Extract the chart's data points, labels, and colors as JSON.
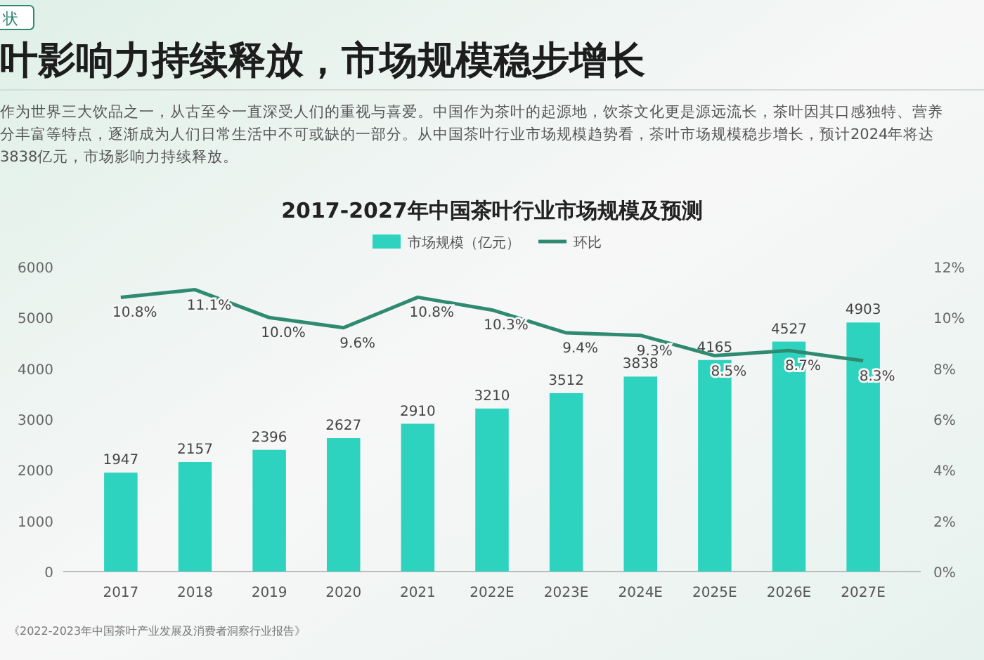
{
  "chart_data": {
    "type": "bar",
    "title": "2017-2027年中国茶叶行业市场规模及预测",
    "categories": [
      "2017",
      "2018",
      "2019",
      "2020",
      "2021",
      "2022E",
      "2023E",
      "2024E",
      "2025E",
      "2026E",
      "2027E"
    ],
    "series": [
      {
        "name": "市场规模（亿元）",
        "color": "#2ed3bf",
        "values": [
          1947,
          2157,
          2396,
          2627,
          2910,
          3210,
          3512,
          3838,
          4165,
          4527,
          4903
        ]
      },
      {
        "name": "环比",
        "type": "line",
        "axis": "y2",
        "color": "#2f8a72",
        "values": [
          10.8,
          11.1,
          10.0,
          9.6,
          10.8,
          10.3,
          9.4,
          9.3,
          8.5,
          8.7,
          8.3
        ],
        "value_labels": [
          "10.8%",
          "11.1%",
          "10.0%",
          "9.6%",
          "10.8%",
          "10.3%",
          "9.4%",
          "9.3%",
          "8.5%",
          "8.7%",
          "8.3%"
        ]
      }
    ],
    "ylim": [
      0,
      6000
    ],
    "yticks": [
      0,
      1000,
      2000,
      3000,
      4000,
      5000,
      6000
    ],
    "y2lim": [
      0,
      12
    ],
    "y2ticks": [
      {
        "value": 0,
        "label": "0%"
      },
      {
        "value": 2,
        "label": "2%"
      },
      {
        "value": 4,
        "label": "4%"
      },
      {
        "value": 6,
        "label": "6%"
      },
      {
        "value": 8,
        "label": "8%"
      },
      {
        "value": 10,
        "label": "10%"
      },
      {
        "value": 12,
        "label": "12%"
      }
    ],
    "data_labels": true,
    "legend": "top",
    "grid": false,
    "marker": "none",
    "line_style": "solid",
    "annotations": [
      "状",
      "叶影响力持续释放，市场规模稳步增长",
      "作为世界三大饮品之一，从古至今一直深受人们的重视与喜爱。中国作为茶叶的起源地，饮茶文化更是源远流长，茶叶因其口感独特、营养",
      "分丰富等特点，逐渐成为人们日常生活中不可或缺的一部分。从中国茶叶行业市场规模趋势看，茶叶市场规模稳步增长，预计2024年将达",
      "3838亿元，市场影响力持续释放。",
      "《2022-2023年中国茶叶产业发展及消费者洞察行业报告》"
    ]
  }
}
